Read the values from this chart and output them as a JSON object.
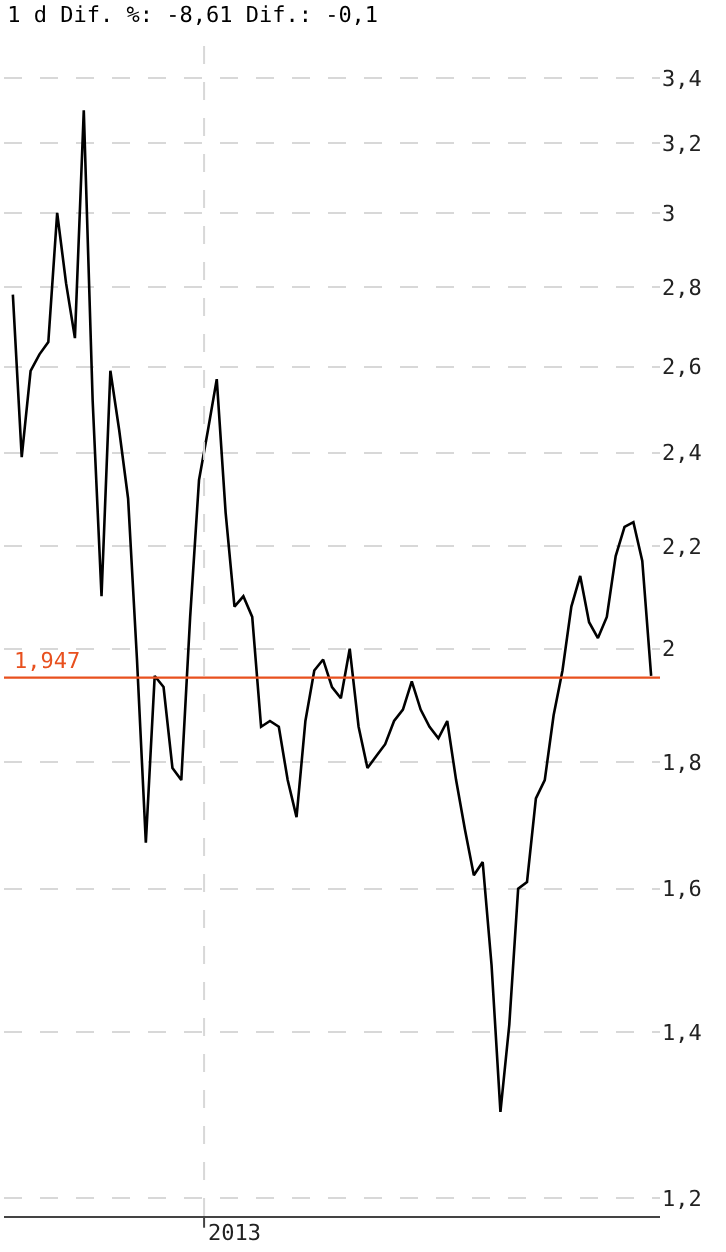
{
  "chart_data": {
    "type": "line",
    "title": "1 d Dif. %: -8,61 Dif.: -0,1",
    "categories": [
      null,
      null,
      null,
      null,
      null,
      null,
      null,
      null,
      null,
      null,
      null,
      null,
      null,
      null,
      null,
      null,
      null,
      null,
      null,
      null,
      null,
      null,
      null,
      null,
      null,
      null,
      null,
      null,
      null,
      null,
      null,
      null,
      null,
      null,
      null,
      null,
      null,
      null,
      null,
      null,
      null,
      null,
      null,
      null,
      null,
      null,
      null,
      null,
      null,
      null,
      null,
      null,
      null,
      null,
      null,
      null,
      null,
      null,
      null,
      null,
      null,
      null,
      null,
      null,
      null,
      null,
      null,
      null,
      null,
      null,
      null,
      null,
      null
    ],
    "annotations": [
      "2013"
    ],
    "series": [
      {
        "color": "#000000",
        "values": [
          2.78,
          2.39,
          2.59,
          2.63,
          2.66,
          3.0,
          2.81,
          2.67,
          3.3,
          2.52,
          2.1,
          2.59,
          2.45,
          2.3,
          1.98,
          1.67,
          1.95,
          1.93,
          1.79,
          1.77,
          2.06,
          2.34,
          2.45,
          2.57,
          2.27,
          2.08,
          2.1,
          2.06,
          1.86,
          1.87,
          1.86,
          1.77,
          1.71,
          1.87,
          1.96,
          1.98,
          1.93,
          1.91,
          2.0,
          1.86,
          1.79,
          1.81,
          1.83,
          1.87,
          1.89,
          1.94,
          1.89,
          1.86,
          1.84,
          1.87,
          1.77,
          1.69,
          1.62,
          1.64,
          1.49,
          1.3,
          1.41,
          1.6,
          1.61,
          1.74,
          1.77,
          1.88,
          1.96,
          2.08,
          2.14,
          2.05,
          2.02,
          2.06,
          2.18,
          2.24,
          2.25,
          2.17,
          1.95
        ]
      }
    ],
    "log": true,
    "ylim": [
      1.18,
      3.51
    ],
    "yticks": [
      {
        "value": 1.2,
        "label": "1,2"
      },
      {
        "value": 1.4,
        "label": "1,4"
      },
      {
        "value": 1.6,
        "label": "1,6"
      },
      {
        "value": 1.8,
        "label": "1,8"
      },
      {
        "value": 2,
        "label": "2"
      },
      {
        "value": 2.2,
        "label": "2,2"
      },
      {
        "value": 2.4,
        "label": "2,4"
      },
      {
        "value": 2.6,
        "label": "2,6"
      },
      {
        "value": 2.8,
        "label": "2,8"
      },
      {
        "value": 3,
        "label": "3"
      },
      {
        "value": 3.2,
        "label": "3,2"
      },
      {
        "value": 3.4,
        "label": "3,4"
      }
    ],
    "ref_lines": [
      {
        "axis": "y",
        "value": 1.947,
        "label": "1,947",
        "color": "#e8501e"
      }
    ],
    "grid": "y",
    "marker": "none",
    "line_style": "solid"
  }
}
